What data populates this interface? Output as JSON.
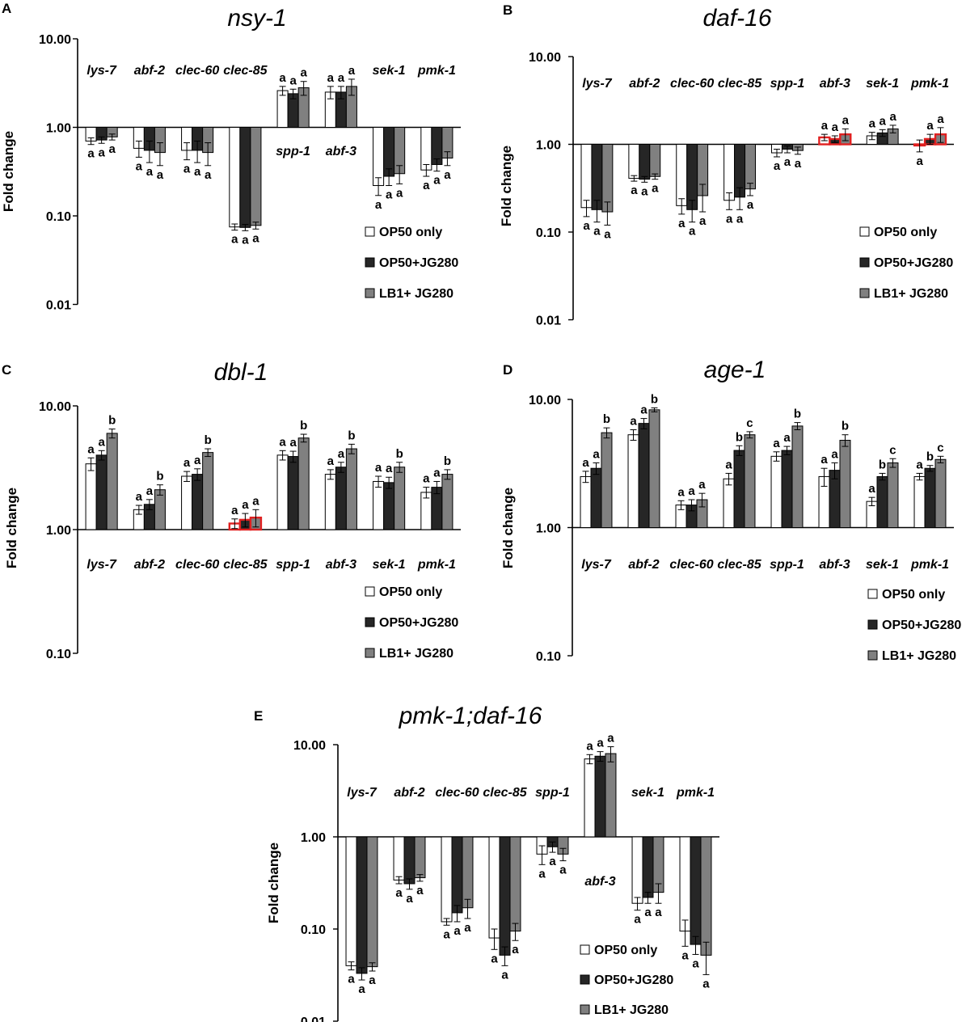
{
  "colors": {
    "op50": "#ffffff",
    "op50jg": "#262626",
    "lb1jg": "#808080",
    "highlight": "#e02020",
    "axis": "#000000"
  },
  "legend": [
    "OP50 only",
    "OP50+JG280",
    "LB1+ JG280"
  ],
  "ylabel": "Fold change",
  "chart_data": [
    {
      "panel": "A",
      "title": "nsy-1",
      "type": "bar",
      "yscale": "log",
      "ylim": [
        0.01,
        10
      ],
      "yticks": [
        "10.00",
        "1.00",
        "0.10",
        "0.01"
      ],
      "categories": [
        "lys-7",
        "abf-2",
        "clec-60",
        "clec-85",
        "spp-1",
        "abf-3",
        "sek-1",
        "pmk-1"
      ],
      "series": [
        {
          "name": "OP50 only",
          "values": [
            0.7,
            0.58,
            0.55,
            0.075,
            2.6,
            2.5,
            0.22,
            0.33
          ],
          "errors": [
            0.06,
            0.12,
            0.12,
            0.006,
            0.3,
            0.4,
            0.05,
            0.05
          ]
        },
        {
          "name": "OP50+JG280",
          "values": [
            0.72,
            0.55,
            0.55,
            0.074,
            2.4,
            2.5,
            0.28,
            0.38
          ],
          "errors": [
            0.06,
            0.15,
            0.15,
            0.006,
            0.3,
            0.4,
            0.06,
            0.06
          ]
        },
        {
          "name": "LB1+ JG280",
          "values": [
            0.78,
            0.52,
            0.52,
            0.078,
            2.8,
            2.9,
            0.3,
            0.45
          ],
          "errors": [
            0.06,
            0.15,
            0.15,
            0.007,
            0.5,
            0.6,
            0.07,
            0.08
          ]
        }
      ],
      "sig": [
        [
          "a",
          "a",
          "a"
        ],
        [
          "a",
          "a",
          "a"
        ],
        [
          "a",
          "a",
          "a"
        ],
        [
          "a",
          "a",
          "a"
        ],
        [
          "a",
          "a",
          "a"
        ],
        [
          "a",
          "a",
          "a"
        ],
        [
          "a",
          "a",
          "a"
        ],
        [
          "a",
          "a",
          "a"
        ]
      ],
      "highlight": []
    },
    {
      "panel": "B",
      "title": "daf-16",
      "type": "bar",
      "yscale": "log",
      "ylim": [
        0.01,
        10
      ],
      "yticks": [
        "10.00",
        "1.00",
        "0.10",
        "0.01"
      ],
      "categories": [
        "lys-7",
        "abf-2",
        "clec-60",
        "clec-85",
        "spp-1",
        "abf-3",
        "sek-1",
        "pmk-1"
      ],
      "series": [
        {
          "name": "OP50 only",
          "values": [
            0.19,
            0.41,
            0.2,
            0.23,
            0.8,
            1.2,
            1.25,
            0.97
          ],
          "errors": [
            0.04,
            0.03,
            0.04,
            0.05,
            0.08,
            0.1,
            0.12,
            0.15
          ]
        },
        {
          "name": "OP50+JG280",
          "values": [
            0.18,
            0.4,
            0.18,
            0.25,
            0.88,
            1.15,
            1.35,
            1.15
          ],
          "errors": [
            0.05,
            0.03,
            0.05,
            0.07,
            0.08,
            0.1,
            0.12,
            0.15
          ]
        },
        {
          "name": "LB1+ JG280",
          "values": [
            0.17,
            0.43,
            0.26,
            0.31,
            0.85,
            1.3,
            1.5,
            1.3
          ],
          "errors": [
            0.05,
            0.03,
            0.09,
            0.05,
            0.08,
            0.2,
            0.15,
            0.25
          ]
        }
      ],
      "sig": [
        [
          "a",
          "a",
          "a"
        ],
        [
          "a",
          "a",
          "a"
        ],
        [
          "a",
          "a",
          "a"
        ],
        [
          "a",
          "a",
          "a"
        ],
        [
          "a",
          "a",
          "a"
        ],
        [
          "a",
          "a",
          "a"
        ],
        [
          "a",
          "a",
          "a"
        ],
        [
          "a",
          "a",
          "a"
        ]
      ],
      "highlight": [
        "abf-3",
        "pmk-1"
      ]
    },
    {
      "panel": "C",
      "title": "dbl-1",
      "type": "bar",
      "yscale": "log",
      "ylim": [
        0.1,
        10
      ],
      "yticks": [
        "10.00",
        "1.00",
        "0.10"
      ],
      "categories": [
        "lys-7",
        "abf-2",
        "clec-60",
        "clec-85",
        "spp-1",
        "abf-3",
        "sek-1",
        "pmk-1"
      ],
      "series": [
        {
          "name": "OP50 only",
          "values": [
            3.4,
            1.45,
            2.7,
            1.12,
            4.0,
            2.8,
            2.45,
            2.0
          ],
          "errors": [
            0.4,
            0.12,
            0.25,
            0.1,
            0.35,
            0.25,
            0.25,
            0.2
          ]
        },
        {
          "name": "OP50+JG280",
          "values": [
            4.0,
            1.6,
            2.8,
            1.2,
            3.9,
            3.2,
            2.4,
            2.2
          ],
          "errors": [
            0.35,
            0.15,
            0.3,
            0.15,
            0.4,
            0.3,
            0.25,
            0.25
          ]
        },
        {
          "name": "LB1+ JG280",
          "values": [
            6.0,
            2.1,
            4.2,
            1.25,
            5.5,
            4.5,
            3.2,
            2.8
          ],
          "errors": [
            0.5,
            0.2,
            0.3,
            0.2,
            0.4,
            0.4,
            0.3,
            0.25
          ]
        }
      ],
      "sig": [
        [
          "a",
          "a",
          "b"
        ],
        [
          "a",
          "a",
          "b"
        ],
        [
          "a",
          "a",
          "b"
        ],
        [
          "a",
          "a",
          "a"
        ],
        [
          "a",
          "a",
          "b"
        ],
        [
          "a",
          "a",
          "b"
        ],
        [
          "a",
          "a",
          "b"
        ],
        [
          "a",
          "a",
          "b"
        ]
      ],
      "highlight": [
        "clec-85"
      ]
    },
    {
      "panel": "D",
      "title": "age-1",
      "type": "bar",
      "yscale": "log",
      "ylim": [
        0.1,
        10
      ],
      "yticks": [
        "10.00",
        "1.00",
        "0.10"
      ],
      "categories": [
        "lys-7",
        "abf-2",
        "clec-60",
        "clec-85",
        "spp-1",
        "abf-3",
        "sek-1",
        "pmk-1"
      ],
      "series": [
        {
          "name": "OP50 only",
          "values": [
            2.5,
            5.3,
            1.5,
            2.4,
            3.6,
            2.5,
            1.6,
            2.5
          ],
          "errors": [
            0.25,
            0.5,
            0.12,
            0.25,
            0.3,
            0.4,
            0.12,
            0.15
          ]
        },
        {
          "name": "OP50+JG280",
          "values": [
            2.9,
            6.5,
            1.5,
            4.0,
            4.0,
            2.8,
            2.5,
            2.9
          ],
          "errors": [
            0.3,
            0.6,
            0.15,
            0.35,
            0.3,
            0.4,
            0.15,
            0.15
          ]
        },
        {
          "name": "LB1+ JG280",
          "values": [
            5.5,
            8.3,
            1.65,
            5.3,
            6.2,
            4.8,
            3.2,
            3.4
          ],
          "errors": [
            0.5,
            0.3,
            0.2,
            0.3,
            0.4,
            0.5,
            0.25,
            0.2
          ]
        }
      ],
      "sig": [
        [
          "a",
          "a",
          "b"
        ],
        [
          "a",
          "a",
          "b"
        ],
        [
          "a",
          "a",
          "a"
        ],
        [
          "a",
          "b",
          "c"
        ],
        [
          "a",
          "a",
          "b"
        ],
        [
          "a",
          "a",
          "b"
        ],
        [
          "a",
          "b",
          "c"
        ],
        [
          "a",
          "b",
          "c"
        ]
      ],
      "highlight": []
    },
    {
      "panel": "E",
      "title": "pmk-1;daf-16",
      "type": "bar",
      "yscale": "log",
      "ylim": [
        0.01,
        10
      ],
      "yticks": [
        "10.00",
        "1.00",
        "0.10",
        "0.01"
      ],
      "categories": [
        "lys-7",
        "abf-2",
        "clec-60",
        "clec-85",
        "spp-1",
        "abf-3",
        "sek-1",
        "pmk-1"
      ],
      "series": [
        {
          "name": "OP50 only",
          "values": [
            0.04,
            0.34,
            0.12,
            0.08,
            0.65,
            7.0,
            0.19,
            0.095
          ],
          "errors": [
            0.004,
            0.03,
            0.01,
            0.02,
            0.15,
            0.8,
            0.03,
            0.03
          ]
        },
        {
          "name": "OP50+JG280",
          "values": [
            0.033,
            0.31,
            0.15,
            0.052,
            0.78,
            7.5,
            0.22,
            0.068
          ],
          "errors": [
            0.005,
            0.04,
            0.03,
            0.012,
            0.1,
            0.9,
            0.03,
            0.015
          ]
        },
        {
          "name": "LB1+ JG280",
          "values": [
            0.039,
            0.36,
            0.17,
            0.095,
            0.65,
            8.0,
            0.25,
            0.052
          ],
          "errors": [
            0.004,
            0.03,
            0.04,
            0.02,
            0.1,
            1.5,
            0.06,
            0.02
          ]
        }
      ],
      "sig": [
        [
          "a",
          "a",
          "a"
        ],
        [
          "a",
          "a",
          "a"
        ],
        [
          "a",
          "a",
          "a"
        ],
        [
          "a",
          "a",
          "a"
        ],
        [
          "a",
          "a",
          "a"
        ],
        [
          "a",
          "a",
          "a"
        ],
        [
          "a",
          "a",
          "a"
        ],
        [
          "a",
          "a",
          "a"
        ]
      ],
      "highlight": []
    }
  ]
}
